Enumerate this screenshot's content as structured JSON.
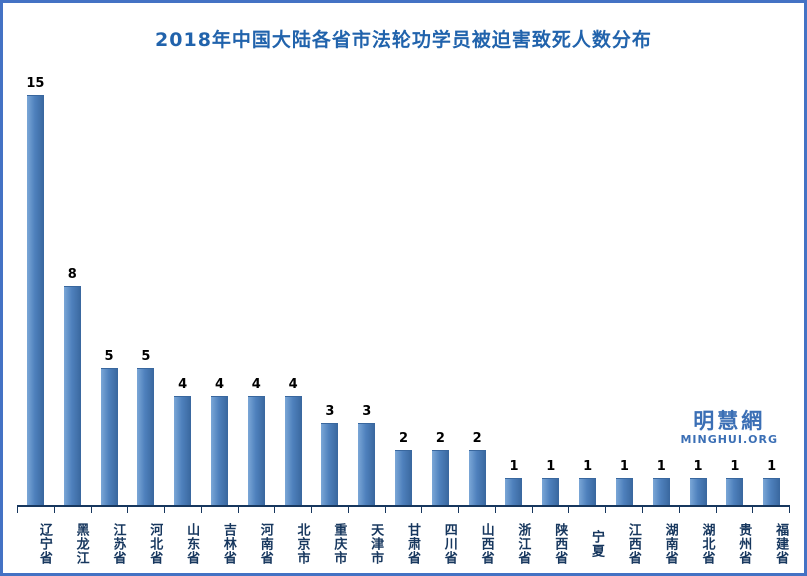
{
  "title": "2018年中国大陆各省市法轮功学员被迫害致死人数分布",
  "watermark": {
    "name": "明慧網",
    "url": "MINGHUI.ORG"
  },
  "colors": {
    "frame_border": "#4472c4",
    "title": "#2163ac",
    "bar_fill_light": "#7ba7d7",
    "bar_fill": "#4f81bd",
    "bar_fill_dark": "#39679e",
    "axis": "#17375e",
    "value_label": "#000000",
    "category_label": "#17375e",
    "watermark": "#3b6fb5"
  },
  "chart_data": {
    "type": "bar",
    "title": "2018年中国大陆各省市法轮功学员被迫害致死人数分布",
    "categories": [
      "辽宁省",
      "黑龙江",
      "江苏省",
      "河北省",
      "山东省",
      "吉林省",
      "河南省",
      "北京市",
      "重庆市",
      "天津市",
      "甘肃省",
      "四川省",
      "山西省",
      "浙江省",
      "陕西省",
      "宁夏",
      "江西省",
      "湖南省",
      "湖北省",
      "贵州省",
      "福建省"
    ],
    "values": [
      15,
      8,
      5,
      5,
      4,
      4,
      4,
      4,
      3,
      3,
      2,
      2,
      2,
      1,
      1,
      1,
      1,
      1,
      1,
      1,
      1
    ],
    "xlabel": "",
    "ylabel": "",
    "ylim": [
      0,
      15
    ],
    "grid": false,
    "legend": false,
    "value_labels": true,
    "bar_color": "#4f81bd"
  }
}
